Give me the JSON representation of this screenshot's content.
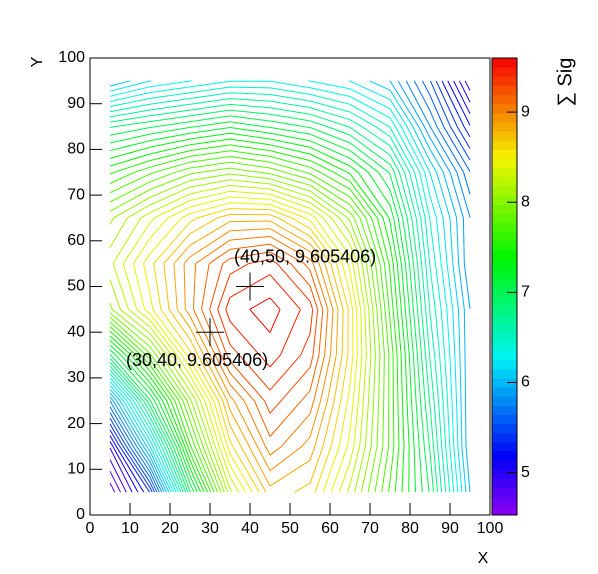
{
  "chart_data": {
    "type": "contour",
    "xlabel": "X",
    "ylabel": "Y",
    "ztitle": "∑ Sig",
    "xlim": [
      0,
      100
    ],
    "ylim": [
      0,
      100
    ],
    "xticks": [
      0,
      10,
      20,
      30,
      40,
      50,
      60,
      70,
      80,
      90,
      100
    ],
    "yticks": [
      0,
      10,
      20,
      30,
      40,
      50,
      60,
      70,
      80,
      90,
      100
    ],
    "zlim": [
      4.53,
      9.6
    ],
    "zticks": [
      5,
      6,
      7,
      8,
      9
    ],
    "contours": 50,
    "x": [
      5,
      15,
      25,
      35,
      45,
      55,
      65,
      75,
      85,
      95
    ],
    "y": [
      5,
      15,
      25,
      35,
      45,
      55,
      65,
      75,
      85,
      95
    ],
    "z": [
      [
        4.6,
        5.3,
        7.0,
        8.2,
        8.8,
        8.7,
        8.2,
        7.6,
        7.0,
        6.0
      ],
      [
        5.0,
        6.2,
        7.6,
        8.6,
        9.1,
        8.9,
        8.4,
        7.7,
        6.9,
        5.9
      ],
      [
        5.8,
        7.0,
        8.0,
        8.9,
        9.3,
        9.1,
        8.5,
        7.7,
        6.8,
        5.9
      ],
      [
        7.0,
        7.8,
        8.6,
        9.3,
        9.5,
        9.3,
        8.6,
        7.7,
        6.7,
        5.9
      ],
      [
        8.0,
        8.5,
        9.0,
        9.5,
        9.6,
        9.4,
        8.6,
        7.6,
        6.6,
        5.9
      ],
      [
        8.2,
        8.6,
        9.0,
        9.3,
        9.4,
        9.1,
        8.4,
        7.5,
        6.5,
        5.8
      ],
      [
        8.0,
        8.3,
        8.6,
        8.8,
        8.8,
        8.5,
        8.0,
        7.3,
        6.4,
        5.8
      ],
      [
        7.5,
        7.7,
        7.9,
        8.0,
        7.9,
        7.7,
        7.4,
        7.0,
        6.2,
        5.6
      ],
      [
        6.9,
        7.0,
        7.1,
        7.2,
        7.1,
        7.0,
        6.8,
        6.5,
        5.8,
        5.2
      ],
      [
        6.0,
        6.2,
        6.3,
        6.4,
        6.4,
        6.3,
        6.2,
        6.0,
        5.5,
        4.8
      ]
    ],
    "markers": [
      {
        "x": 40,
        "y": 50,
        "label": "(40,50, 9.605406)"
      },
      {
        "x": 30,
        "y": 40,
        "label": "(30,40, 9.605406)"
      }
    ]
  }
}
